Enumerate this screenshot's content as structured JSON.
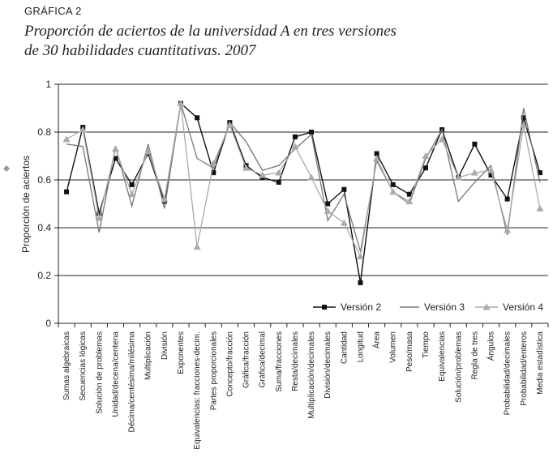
{
  "header": {
    "kicker": "GRÁFICA 2",
    "title_line1": "Proporción de aciertos de la universidad A en tres versiones",
    "title_line2": "de 30 habilidades cuantitativas. 2007"
  },
  "chart_data": {
    "type": "line",
    "title": "Proporción de aciertos de la universidad A en tres versiones de 30 habilidades cuantitativas. 2007",
    "xlabel": "",
    "ylabel": "Proporción de aciertos",
    "ylim": [
      0,
      1
    ],
    "yticks": [
      0,
      0.2,
      0.4,
      0.6,
      0.8,
      1
    ],
    "ytick_labels": [
      "0",
      "0.2",
      "0.4",
      "0.6",
      "0.8",
      "1"
    ],
    "grid": "horizontal",
    "legend_position": "lower-right",
    "categories": [
      "Sumas algebraicas",
      "Secuencias lógicas",
      "Solución de problemas",
      "Unidad/decena/centena",
      "Décima/centésima/milésima",
      "Multiplicación",
      "División",
      "Exponentes",
      "Equivalencias: fracciones-decim.",
      "Partes proporcionales",
      "Concepto/fracción",
      "Gráfica/fracción",
      "Gráfica/decimal",
      "Suma/fracciones",
      "Resta/decimales",
      "Multiplicación/decimales",
      "División/decimales",
      "Cantidad",
      "Longitud",
      "Área",
      "Volumen",
      "Peso/masa",
      "Tiempo",
      "Equivalencias",
      "Solución/problemas",
      "Regla de tres",
      "Ángulos",
      "Probabilidad/decimales",
      "Probabilidad/enteros",
      "Media estadística"
    ],
    "series": [
      {
        "name": "Versión 2",
        "color": "#111111",
        "marker": "square",
        "values": [
          0.55,
          0.82,
          0.46,
          0.69,
          0.58,
          0.71,
          0.51,
          0.92,
          0.86,
          0.63,
          0.84,
          0.66,
          0.61,
          0.59,
          0.78,
          0.8,
          0.5,
          0.56,
          0.17,
          0.71,
          0.58,
          0.54,
          0.65,
          0.81,
          0.61,
          0.75,
          0.62,
          0.52,
          0.86,
          0.63
        ]
      },
      {
        "name": "Versión 3",
        "color": "#777777",
        "marker": "none",
        "values": [
          0.75,
          0.74,
          0.38,
          0.74,
          0.49,
          0.75,
          0.48,
          0.92,
          0.69,
          0.65,
          0.84,
          0.76,
          0.64,
          0.66,
          0.73,
          0.79,
          0.43,
          0.54,
          0.3,
          0.68,
          0.55,
          0.5,
          0.69,
          0.81,
          0.51,
          0.59,
          0.66,
          0.37,
          0.9,
          0.59
        ]
      },
      {
        "name": "Versión 4",
        "color": "#aaaaaa",
        "marker": "triangle",
        "values": [
          0.77,
          0.81,
          0.44,
          0.73,
          0.54,
          0.72,
          0.52,
          0.92,
          0.32,
          0.67,
          0.83,
          0.65,
          0.62,
          0.63,
          0.74,
          0.61,
          0.47,
          0.42,
          0.28,
          0.69,
          0.55,
          0.51,
          0.7,
          0.77,
          0.61,
          0.63,
          0.64,
          0.39,
          0.83,
          0.48
        ]
      }
    ]
  }
}
